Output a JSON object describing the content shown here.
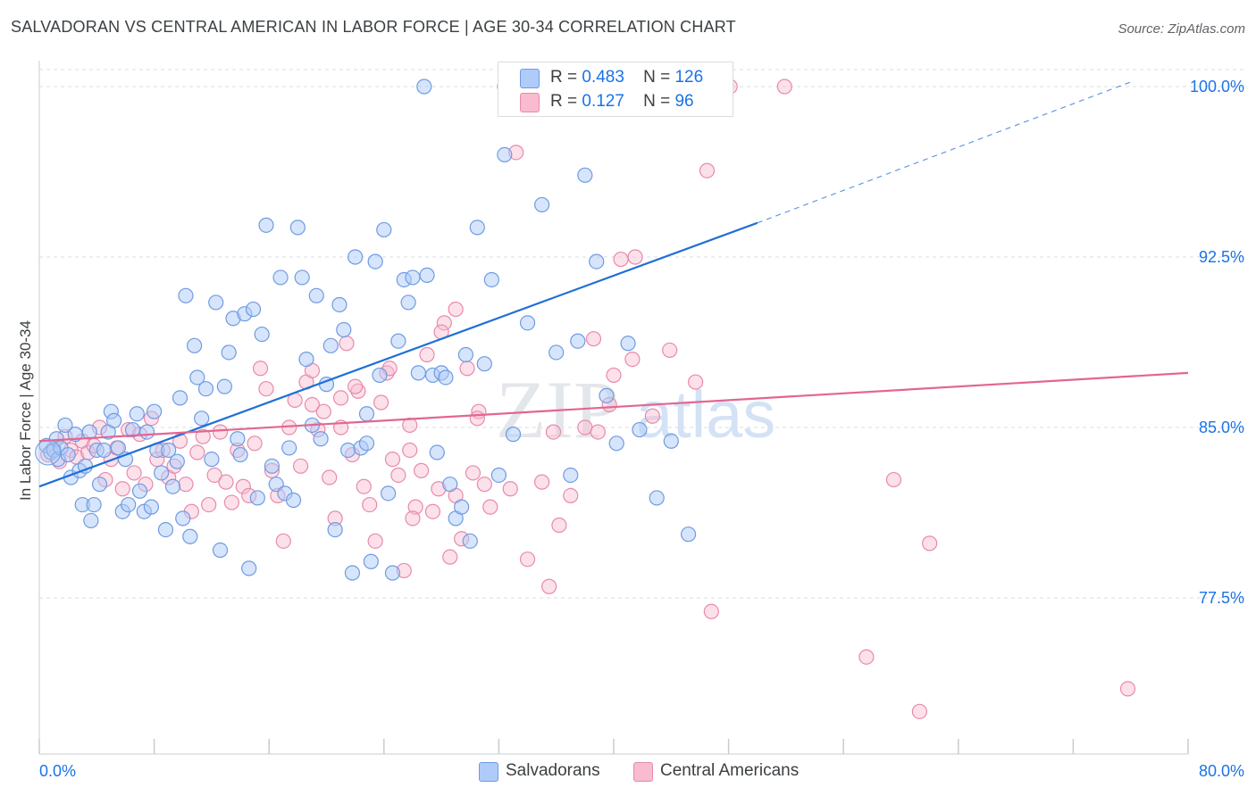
{
  "header": {
    "title": "SALVADORAN VS CENTRAL AMERICAN IN LABOR FORCE | AGE 30-34 CORRELATION CHART",
    "source": "Source: ZipAtlas.com"
  },
  "watermark": {
    "zip": "ZIP",
    "atlas": "atlas"
  },
  "legend": {
    "rows": [
      {
        "r_label": "R =",
        "r_value": "0.483",
        "n_label": "N =",
        "n_value": "126",
        "color": "#aecbfa"
      },
      {
        "r_label": "R =",
        "r_value": "0.127",
        "n_label": "N =",
        "n_value": "96",
        "color": "#f8bbd0"
      }
    ]
  },
  "bottom_legend": [
    {
      "label": "Salvadorans",
      "color": "#aecbfa"
    },
    {
      "label": "Central Americans",
      "color": "#f8bbd0"
    }
  ],
  "colors": {
    "blue_fill": "#aecbfa",
    "blue_stroke": "#6f9be0",
    "blue_line": "#1f6fd6",
    "pink_fill": "#f8bbd0",
    "pink_stroke": "#e88aab",
    "pink_line": "#e26690",
    "tick_text": "#1a73e8",
    "grid": "#dadce0"
  },
  "chart_data": {
    "type": "scatter",
    "title": "SALVADORAN VS CENTRAL AMERICAN IN LABOR FORCE | AGE 30-34 CORRELATION CHART",
    "xlabel": "",
    "ylabel": "In Labor Force | Age 30-34",
    "xlim": [
      0,
      80
    ],
    "ylim": [
      70.5,
      100.5
    ],
    "x_tick_labels": [
      "0.0%",
      "80.0%"
    ],
    "y_ticks": [
      77.5,
      85.0,
      92.5,
      100.0
    ],
    "y_tick_labels": [
      "77.5%",
      "85.0%",
      "92.5%",
      "100.0%"
    ],
    "grid": true,
    "legend_position": "top-center",
    "series": [
      {
        "name": "Salvadorans",
        "r": 0.483,
        "n": 126,
        "trend": {
          "x0": 0,
          "y0": 82.4,
          "x1": 50,
          "y1": 94.0,
          "dash_x1": 76,
          "dash_y1": 100.2
        },
        "points": [
          [
            0.5,
            84.2
          ],
          [
            0.8,
            83.9
          ],
          [
            1.0,
            84.0
          ],
          [
            1.2,
            84.5
          ],
          [
            1.3,
            83.6
          ],
          [
            1.5,
            84.1
          ],
          [
            1.8,
            85.1
          ],
          [
            2.0,
            83.8
          ],
          [
            2.2,
            82.8
          ],
          [
            2.5,
            84.7
          ],
          [
            2.8,
            83.1
          ],
          [
            3.0,
            81.6
          ],
          [
            3.2,
            83.3
          ],
          [
            3.5,
            84.8
          ],
          [
            3.6,
            80.9
          ],
          [
            3.8,
            81.6
          ],
          [
            4.0,
            84.0
          ],
          [
            4.2,
            82.5
          ],
          [
            4.5,
            84.0
          ],
          [
            4.8,
            84.8
          ],
          [
            5.0,
            85.7
          ],
          [
            5.2,
            85.3
          ],
          [
            5.5,
            84.1
          ],
          [
            5.8,
            81.3
          ],
          [
            6.0,
            83.6
          ],
          [
            6.2,
            81.6
          ],
          [
            6.5,
            84.9
          ],
          [
            6.8,
            85.6
          ],
          [
            7.0,
            82.2
          ],
          [
            7.3,
            81.3
          ],
          [
            7.5,
            84.8
          ],
          [
            7.8,
            81.5
          ],
          [
            8.0,
            85.7
          ],
          [
            8.2,
            84.0
          ],
          [
            8.5,
            83.0
          ],
          [
            8.8,
            80.5
          ],
          [
            9.0,
            84.0
          ],
          [
            9.3,
            82.4
          ],
          [
            9.6,
            83.5
          ],
          [
            10.0,
            81.0
          ],
          [
            10.2,
            90.8
          ],
          [
            10.5,
            80.2
          ],
          [
            10.8,
            88.6
          ],
          [
            11.0,
            87.2
          ],
          [
            11.3,
            85.4
          ],
          [
            11.6,
            86.7
          ],
          [
            12.0,
            83.6
          ],
          [
            12.3,
            90.5
          ],
          [
            12.6,
            79.6
          ],
          [
            12.9,
            86.8
          ],
          [
            13.2,
            88.3
          ],
          [
            13.5,
            89.8
          ],
          [
            13.8,
            84.5
          ],
          [
            14.0,
            83.8
          ],
          [
            14.3,
            90.0
          ],
          [
            14.6,
            78.8
          ],
          [
            14.9,
            90.2
          ],
          [
            15.2,
            81.9
          ],
          [
            15.5,
            89.1
          ],
          [
            15.8,
            93.9
          ],
          [
            16.2,
            83.3
          ],
          [
            16.5,
            82.5
          ],
          [
            16.8,
            91.6
          ],
          [
            17.1,
            82.1
          ],
          [
            17.4,
            84.1
          ],
          [
            17.7,
            81.8
          ],
          [
            18.0,
            93.8
          ],
          [
            18.3,
            91.6
          ],
          [
            18.6,
            88.0
          ],
          [
            19.0,
            85.1
          ],
          [
            19.3,
            90.8
          ],
          [
            19.6,
            84.5
          ],
          [
            20.0,
            86.9
          ],
          [
            20.3,
            88.6
          ],
          [
            20.6,
            80.5
          ],
          [
            20.9,
            90.4
          ],
          [
            21.2,
            89.3
          ],
          [
            21.5,
            84.0
          ],
          [
            21.8,
            78.6
          ],
          [
            22.0,
            92.5
          ],
          [
            22.4,
            84.1
          ],
          [
            22.8,
            85.6
          ],
          [
            23.1,
            79.1
          ],
          [
            23.4,
            92.3
          ],
          [
            23.7,
            87.3
          ],
          [
            24.0,
            93.7
          ],
          [
            24.3,
            82.1
          ],
          [
            24.6,
            78.6
          ],
          [
            25.0,
            88.8
          ],
          [
            25.4,
            91.5
          ],
          [
            25.7,
            90.5
          ],
          [
            26.0,
            91.6
          ],
          [
            26.4,
            87.4
          ],
          [
            26.8,
            100.0
          ],
          [
            27.0,
            91.7
          ],
          [
            27.4,
            87.3
          ],
          [
            27.7,
            83.9
          ],
          [
            28.0,
            87.4
          ],
          [
            28.3,
            87.2
          ],
          [
            28.6,
            82.5
          ],
          [
            29.0,
            81.0
          ],
          [
            29.4,
            81.5
          ],
          [
            29.7,
            88.2
          ],
          [
            30.0,
            80.0
          ],
          [
            30.5,
            93.8
          ],
          [
            31.0,
            87.8
          ],
          [
            31.5,
            91.5
          ],
          [
            32.0,
            82.9
          ],
          [
            32.4,
            97.0
          ],
          [
            33.0,
            84.7
          ],
          [
            34.0,
            89.6
          ],
          [
            35.0,
            94.8
          ],
          [
            36.0,
            88.3
          ],
          [
            37.0,
            82.9
          ],
          [
            37.5,
            88.8
          ],
          [
            38.0,
            96.1
          ],
          [
            38.8,
            92.3
          ],
          [
            39.5,
            86.4
          ],
          [
            40.2,
            84.3
          ],
          [
            41.0,
            88.7
          ],
          [
            41.8,
            84.9
          ],
          [
            43.0,
            81.9
          ],
          [
            44.0,
            84.4
          ],
          [
            45.2,
            80.3
          ],
          [
            22.8,
            84.3
          ],
          [
            9.8,
            86.3
          ]
        ]
      },
      {
        "name": "Central Americans",
        "r": 0.127,
        "n": 96,
        "trend": {
          "x0": 0,
          "y0": 84.4,
          "x1": 80,
          "y1": 87.4
        },
        "points": [
          [
            0.6,
            83.8
          ],
          [
            1.0,
            84.1
          ],
          [
            1.4,
            83.5
          ],
          [
            1.8,
            84.6
          ],
          [
            2.2,
            84.0
          ],
          [
            2.6,
            83.7
          ],
          [
            3.0,
            84.4
          ],
          [
            3.4,
            83.9
          ],
          [
            3.8,
            84.2
          ],
          [
            4.2,
            85.0
          ],
          [
            4.6,
            82.7
          ],
          [
            5.0,
            83.6
          ],
          [
            5.4,
            84.1
          ],
          [
            5.8,
            82.3
          ],
          [
            6.2,
            84.9
          ],
          [
            6.6,
            83.0
          ],
          [
            7.0,
            84.7
          ],
          [
            7.4,
            82.5
          ],
          [
            7.8,
            85.4
          ],
          [
            8.2,
            83.6
          ],
          [
            8.6,
            84.0
          ],
          [
            9.0,
            82.8
          ],
          [
            9.4,
            83.3
          ],
          [
            9.8,
            84.4
          ],
          [
            10.2,
            82.5
          ],
          [
            10.6,
            81.3
          ],
          [
            11.0,
            83.9
          ],
          [
            11.4,
            84.6
          ],
          [
            11.8,
            81.6
          ],
          [
            12.2,
            82.9
          ],
          [
            12.6,
            84.8
          ],
          [
            13.0,
            82.6
          ],
          [
            13.4,
            81.7
          ],
          [
            13.8,
            84.0
          ],
          [
            14.2,
            82.4
          ],
          [
            14.6,
            82.0
          ],
          [
            15.0,
            84.3
          ],
          [
            15.4,
            87.6
          ],
          [
            15.8,
            86.7
          ],
          [
            16.2,
            83.1
          ],
          [
            16.6,
            82.0
          ],
          [
            17.0,
            80.0
          ],
          [
            17.4,
            85.0
          ],
          [
            17.8,
            86.2
          ],
          [
            18.2,
            83.3
          ],
          [
            18.6,
            87.0
          ],
          [
            19.0,
            86.0
          ],
          [
            19.4,
            84.9
          ],
          [
            19.8,
            85.7
          ],
          [
            20.2,
            82.8
          ],
          [
            20.6,
            81.0
          ],
          [
            21.0,
            86.3
          ],
          [
            21.4,
            88.7
          ],
          [
            21.8,
            83.8
          ],
          [
            22.2,
            86.6
          ],
          [
            22.6,
            82.4
          ],
          [
            23.0,
            81.6
          ],
          [
            23.4,
            80.0
          ],
          [
            23.8,
            86.1
          ],
          [
            24.2,
            87.4
          ],
          [
            24.6,
            83.6
          ],
          [
            25.0,
            82.9
          ],
          [
            25.4,
            78.7
          ],
          [
            25.8,
            85.1
          ],
          [
            26.2,
            81.5
          ],
          [
            26.6,
            83.1
          ],
          [
            27.0,
            88.2
          ],
          [
            27.4,
            81.3
          ],
          [
            27.8,
            82.3
          ],
          [
            28.2,
            89.6
          ],
          [
            28.6,
            79.3
          ],
          [
            29.0,
            90.2
          ],
          [
            29.4,
            80.1
          ],
          [
            29.8,
            87.6
          ],
          [
            30.2,
            83.0
          ],
          [
            30.6,
            85.7
          ],
          [
            31.0,
            82.5
          ],
          [
            31.4,
            81.5
          ],
          [
            32.4,
            100.0
          ],
          [
            33.2,
            97.1
          ],
          [
            34.0,
            79.2
          ],
          [
            35.0,
            82.6
          ],
          [
            35.5,
            78.0
          ],
          [
            36.2,
            80.7
          ],
          [
            37.0,
            82.0
          ],
          [
            38.0,
            85.0
          ],
          [
            38.9,
            84.8
          ],
          [
            39.7,
            86.0
          ],
          [
            40.5,
            92.4
          ],
          [
            41.3,
            88.0
          ],
          [
            42.7,
            85.5
          ],
          [
            45.7,
            87.0
          ],
          [
            46.5,
            96.3
          ],
          [
            48.1,
            100.0
          ],
          [
            59.5,
            82.7
          ],
          [
            62.0,
            79.9
          ]
        ]
      }
    ],
    "extra_pink_points": [
      [
        51.9,
        100.0
      ],
      [
        43.9,
        88.4
      ],
      [
        41.5,
        92.5
      ],
      [
        40.0,
        87.3
      ],
      [
        38.6,
        88.9
      ],
      [
        46.8,
        76.9
      ],
      [
        57.6,
        74.9
      ],
      [
        61.3,
        72.5
      ],
      [
        75.8,
        73.5
      ],
      [
        28.0,
        89.2
      ],
      [
        25.8,
        84.0
      ],
      [
        24.4,
        87.6
      ],
      [
        21.0,
        85.0
      ],
      [
        22.0,
        86.8
      ],
      [
        19.0,
        87.5
      ],
      [
        30.5,
        85.4
      ],
      [
        32.8,
        82.3
      ],
      [
        35.8,
        84.8
      ],
      [
        29.0,
        82.0
      ],
      [
        26.0,
        81.0
      ]
    ]
  }
}
